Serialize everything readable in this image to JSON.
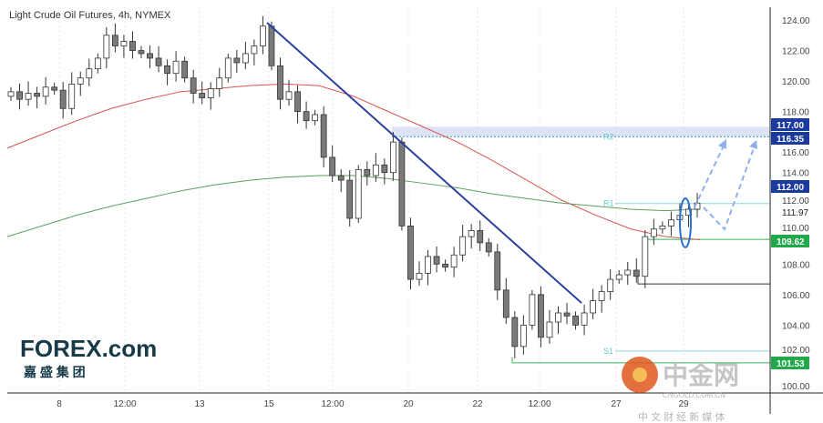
{
  "chart_data": {
    "type": "candlestick",
    "title": "Light Crude Oil Futures, 4h, NYMEX",
    "ylim": [
      99.6,
      125
    ],
    "y_ticks": [
      "124.00",
      "122.00",
      "120.00",
      "118.00",
      "116.00",
      "114.00",
      "112.00",
      "110.00",
      "108.00",
      "106.00",
      "104.00",
      "102.00",
      "100.00"
    ],
    "x_ticks": [
      "8",
      "12:00",
      "13",
      "15",
      "12:00",
      "20",
      "22",
      "12:00",
      "27",
      "29"
    ],
    "closes": [
      119.3,
      118.8,
      119.2,
      119.0,
      119.6,
      119.4,
      118.2,
      119.8,
      120.2,
      120.8,
      121.5,
      123.0,
      122.3,
      122.6,
      122.0,
      121.8,
      121.5,
      121.0,
      120.5,
      121.3,
      120.2,
      119.2,
      118.9,
      119.5,
      120.2,
      121.5,
      121.2,
      121.8,
      122.3,
      123.6,
      121.0,
      118.8,
      119.3,
      118.0,
      117.4,
      117.8,
      115.0,
      113.8,
      113.5,
      111.0,
      114.2,
      113.8,
      114.5,
      114.0,
      116.0,
      110.5,
      107.0,
      107.4,
      108.5,
      108.0,
      107.8,
      108.6,
      109.8,
      110.2,
      109.4,
      108.8,
      106.3,
      104.5,
      102.6,
      104.0,
      106.0,
      103.2,
      104.2,
      104.8,
      104.6,
      104.0,
      104.8,
      105.6,
      106.2,
      107.0,
      107.3,
      107.6,
      107.2,
      109.8,
      110.3,
      110.5,
      110.9,
      111.2,
      111.6,
      112.0
    ],
    "ma_red": [
      115.6,
      116.5,
      117.4,
      118.2,
      118.8,
      119.3,
      119.5,
      119.7,
      119.8,
      119.7,
      119.0,
      118.0,
      117.0,
      116.0,
      114.8,
      113.5,
      112.2,
      111.2,
      110.3,
      109.8,
      109.6
    ],
    "ma_green": [
      109.8,
      110.5,
      111.2,
      111.8,
      112.3,
      112.8,
      113.2,
      113.5,
      113.7,
      113.8,
      113.8,
      113.6,
      113.3,
      113.0,
      112.6,
      112.3,
      112.0,
      111.8,
      111.6,
      111.5,
      111.6
    ],
    "levels": {
      "zone_low": 116.35,
      "zone_high": 117.0,
      "R2": {
        "label": "R2",
        "value": 116.35
      },
      "R1": {
        "label": "R1",
        "value": 111.97
      },
      "S1": {
        "label": "S1",
        "value": 102.3
      },
      "support_green": 109.62,
      "low_green": 101.53,
      "black_level": 106.7
    },
    "price_badges": [
      {
        "text": "117.00",
        "value": 117.0,
        "color": "#1a3a9c"
      },
      {
        "text": "116.35",
        "value": 116.35,
        "color": "#1a3a9c"
      },
      {
        "text": "112.00",
        "value": 112.0,
        "color": "#1a3a9c"
      },
      {
        "text": "109.62",
        "value": 109.62,
        "color": "#22a84a"
      },
      {
        "text": "101.53",
        "value": 101.53,
        "color": "#22a84a"
      }
    ],
    "last_price_text": "111.97",
    "trendline": [
      [
        123.6,
        0.37
      ],
      [
        105.2,
        0.84
      ]
    ]
  },
  "branding": {
    "logo": "FOREX.com",
    "logo_cn": "嘉 盛 集 团",
    "watermark": "中金网",
    "watermark_url": "CNGOLD.COM.CN",
    "watermark_sub": "中 文 财 经 新 媒 体"
  },
  "colors": {
    "up": "#ffffff",
    "down": "#7a7a7a",
    "red_ma": "#d9534f",
    "green_ma": "#5aa15a",
    "accent": "#1a3a9c"
  }
}
